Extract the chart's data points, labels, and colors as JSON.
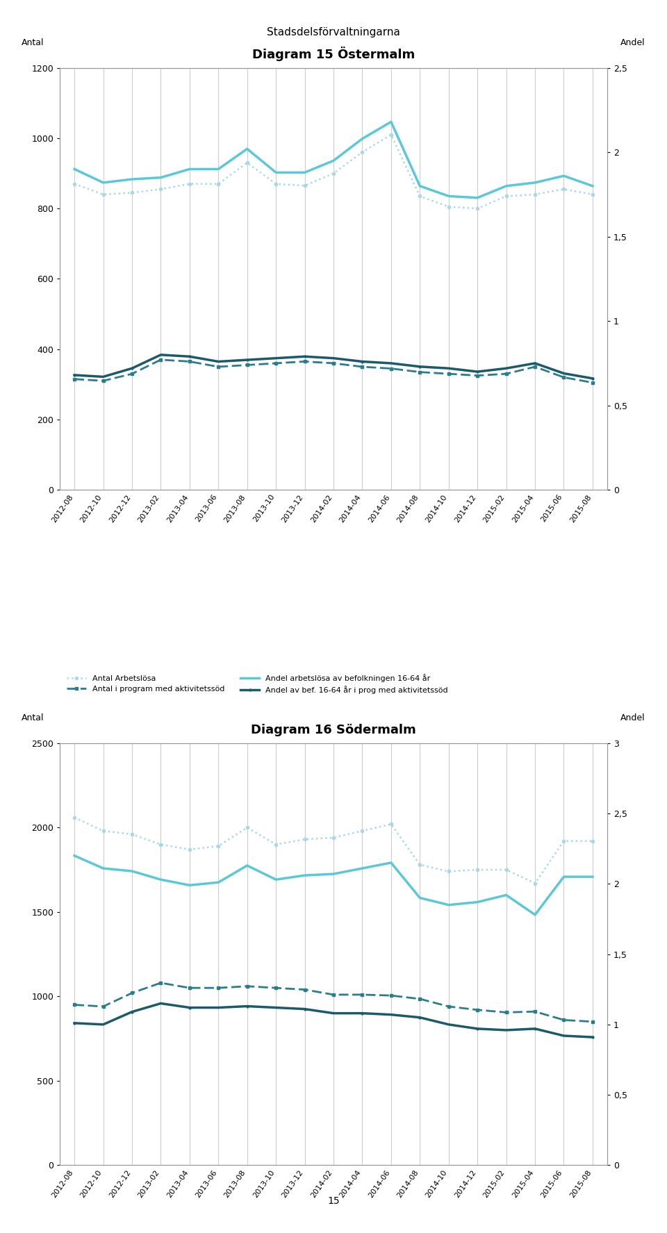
{
  "page_title": "Stadsdelsförvaltningarna",
  "page_number": "15",
  "x_labels": [
    "2012-08",
    "2012-10",
    "2012-12",
    "2013-02",
    "2013-04",
    "2013-06",
    "2013-08",
    "2013-10",
    "2013-12",
    "2014-02",
    "2014-04",
    "2014-06",
    "2014-08",
    "2014-10",
    "2014-12",
    "2015-02",
    "2015-04",
    "2015-06",
    "2015-08"
  ],
  "chart1": {
    "title": "Diagram 15 Östermalm",
    "ylabel_left": "Antal",
    "ylabel_right": "Andel",
    "ylim_left": [
      0,
      1200
    ],
    "ylim_right": [
      0,
      2.5
    ],
    "yticks_left": [
      0,
      200,
      400,
      600,
      800,
      1000,
      1200
    ],
    "yticks_right": [
      0,
      0.5,
      1.0,
      1.5,
      2.0,
      2.5
    ],
    "antal_arbetslosa": [
      870,
      840,
      845,
      855,
      870,
      870,
      930,
      870,
      865,
      900,
      960,
      1010,
      835,
      805,
      800,
      835,
      840,
      855,
      840
    ],
    "antal_program": [
      315,
      310,
      330,
      370,
      365,
      350,
      355,
      360,
      365,
      360,
      350,
      345,
      335,
      330,
      325,
      330,
      350,
      320,
      305
    ],
    "andel_arbetslosa": [
      1.9,
      1.82,
      1.84,
      1.85,
      1.9,
      1.9,
      2.02,
      1.88,
      1.88,
      1.95,
      2.08,
      2.18,
      1.8,
      1.74,
      1.73,
      1.8,
      1.82,
      1.86,
      1.8
    ],
    "andel_program": [
      0.68,
      0.67,
      0.72,
      0.8,
      0.79,
      0.76,
      0.77,
      0.78,
      0.79,
      0.78,
      0.76,
      0.75,
      0.73,
      0.72,
      0.7,
      0.72,
      0.75,
      0.69,
      0.66
    ]
  },
  "chart2": {
    "title": "Diagram 16 Södermalm",
    "ylabel_left": "Antal",
    "ylabel_right": "Andel",
    "ylim_left": [
      0,
      2500
    ],
    "ylim_right": [
      0,
      3
    ],
    "yticks_left": [
      0,
      500,
      1000,
      1500,
      2000,
      2500
    ],
    "yticks_right": [
      0,
      0.5,
      1.0,
      1.5,
      2.0,
      2.5,
      3.0
    ],
    "antal_arbetslosa": [
      2060,
      1980,
      1960,
      1900,
      1870,
      1890,
      2000,
      1900,
      1930,
      1940,
      1980,
      2020,
      1780,
      1740,
      1750,
      1750,
      1670,
      1920,
      1920
    ],
    "antal_program": [
      950,
      940,
      1020,
      1080,
      1050,
      1050,
      1060,
      1050,
      1040,
      1010,
      1010,
      1005,
      985,
      940,
      920,
      905,
      910,
      860,
      850
    ],
    "andel_arbetslosa": [
      2.2,
      2.11,
      2.09,
      2.03,
      1.99,
      2.01,
      2.13,
      2.03,
      2.06,
      2.07,
      2.11,
      2.15,
      1.9,
      1.85,
      1.87,
      1.92,
      1.78,
      2.05,
      2.05
    ],
    "andel_program": [
      1.01,
      1.0,
      1.09,
      1.15,
      1.12,
      1.12,
      1.13,
      1.12,
      1.11,
      1.08,
      1.08,
      1.07,
      1.05,
      1.0,
      0.97,
      0.96,
      0.97,
      0.92,
      0.91
    ]
  },
  "colors": {
    "antal_arbetslosa": "#a8d8e8",
    "antal_program": "#2a7d8c",
    "andel_arbetslosa": "#5bc8d8",
    "andel_program": "#1a5a6a"
  },
  "legend": {
    "l1": "Antal Arbetslösa",
    "l2": "Antal i program med aktivitetssöd",
    "l3": "Andel arbetslösa av befolkningen 16-64 år",
    "l4": "Andel av bef. 16-64 år i prog med aktivitetssöd"
  }
}
